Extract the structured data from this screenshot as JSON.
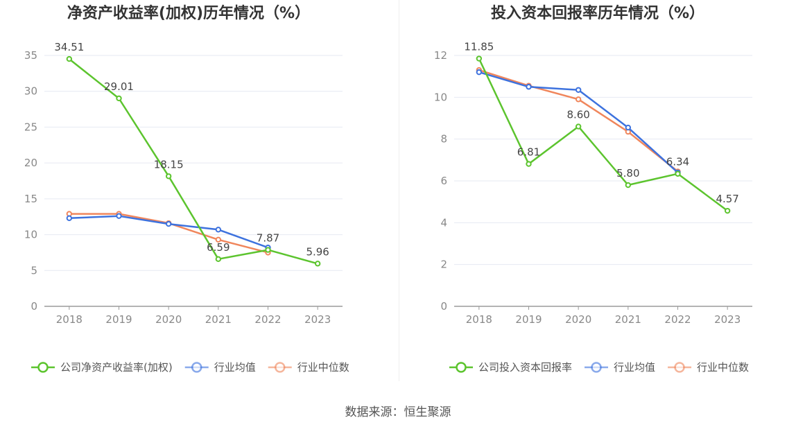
{
  "footer": {
    "source": "数据来源：恒生聚源"
  },
  "chart_data": [
    {
      "type": "line",
      "title": "净资产收益率(加权)历年情况（%）",
      "categories": [
        "2018",
        "2019",
        "2020",
        "2021",
        "2022",
        "2023"
      ],
      "ylim": [
        0,
        35
      ],
      "yticks": [
        0,
        5,
        10,
        15,
        20,
        25,
        30,
        35
      ],
      "grid": true,
      "legend_position": "bottom",
      "series": [
        {
          "name": "公司净资产收益率(加权)",
          "color": "#5cc42e",
          "values": [
            34.51,
            29.01,
            18.15,
            6.59,
            7.87,
            5.96
          ],
          "labels": [
            "34.51",
            "29.01",
            "18.15",
            "6.59",
            "7.87",
            "5.96"
          ]
        },
        {
          "name": "行业均值",
          "color": "#3d72de",
          "values": [
            12.3,
            12.6,
            11.5,
            10.7,
            8.2,
            null
          ]
        },
        {
          "name": "行业中位数",
          "color": "#f0865c",
          "values": [
            12.9,
            12.9,
            11.6,
            9.3,
            7.5,
            null
          ]
        }
      ]
    },
    {
      "type": "line",
      "title": "投入资本回报率历年情况（%）",
      "categories": [
        "2018",
        "2019",
        "2020",
        "2021",
        "2022",
        "2023"
      ],
      "ylim": [
        0,
        12
      ],
      "yticks": [
        0,
        2,
        4,
        6,
        8,
        10,
        12
      ],
      "grid": true,
      "legend_position": "bottom",
      "series": [
        {
          "name": "公司投入资本回报率",
          "color": "#5cc42e",
          "values": [
            11.85,
            6.81,
            8.6,
            5.8,
            6.34,
            4.57
          ],
          "labels": [
            "11.85",
            "6.81",
            "8.60",
            "5.80",
            "6.34",
            "4.57"
          ]
        },
        {
          "name": "行业均值",
          "color": "#3d72de",
          "values": [
            11.2,
            10.5,
            10.35,
            8.55,
            6.4,
            null
          ]
        },
        {
          "name": "行业中位数",
          "color": "#f0865c",
          "values": [
            11.3,
            10.55,
            9.9,
            8.35,
            6.45,
            null
          ]
        }
      ]
    }
  ]
}
